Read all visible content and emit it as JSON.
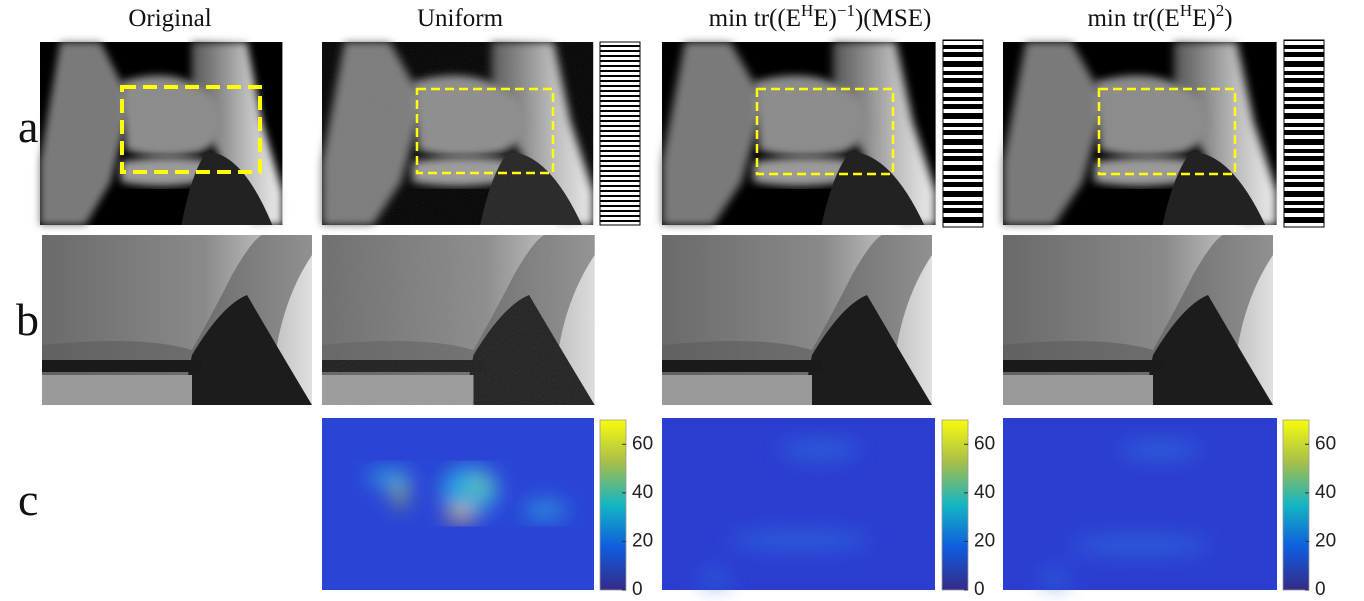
{
  "columns": [
    {
      "title": [
        {
          "text": "Original"
        }
      ]
    },
    {
      "title": [
        {
          "text": "Uniform"
        }
      ]
    },
    {
      "title": [
        {
          "text": "min tr((E"
        },
        {
          "text": "H",
          "sup": true
        },
        {
          "text": "E)"
        },
        {
          "text": "−1",
          "sup": true
        },
        {
          "text": ")(MSE)"
        }
      ]
    },
    {
      "title": [
        {
          "text": "min tr((E"
        },
        {
          "text": "H",
          "sup": true
        },
        {
          "text": "E)"
        },
        {
          "text": "2",
          "sup": true
        },
        {
          "text": ")"
        }
      ]
    }
  ],
  "rows": [
    "a",
    "b",
    "c"
  ],
  "colorbars": [
    {
      "lim": [
        0,
        70
      ],
      "ticks": [
        0,
        20,
        40,
        60
      ]
    },
    {
      "lim": [
        0,
        70
      ],
      "ticks": [
        0,
        20,
        40,
        60
      ]
    },
    {
      "lim": [
        0,
        70
      ],
      "ticks": [
        0,
        20,
        40,
        60
      ]
    }
  ]
}
